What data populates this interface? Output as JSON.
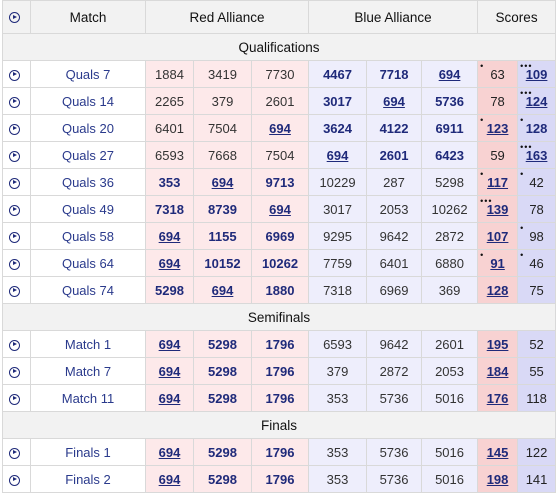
{
  "headers": {
    "match": "Match",
    "red": "Red Alliance",
    "blue": "Blue Alliance",
    "scores": "Scores"
  },
  "sections": [
    {
      "title": "Qualifications",
      "rows": [
        {
          "name": "Quals 7",
          "red": [
            {
              "t": "1884",
              "s": ""
            },
            {
              "t": "3419",
              "s": ""
            },
            {
              "t": "7730",
              "s": ""
            }
          ],
          "blue": [
            {
              "t": "4467",
              "s": "b"
            },
            {
              "t": "7718",
              "s": "b"
            },
            {
              "t": "694",
              "s": "u"
            }
          ],
          "rs": {
            "t": "63",
            "s": "",
            "d": "•"
          },
          "bs": {
            "t": "109",
            "s": "u",
            "d": "•••"
          }
        },
        {
          "name": "Quals 14",
          "red": [
            {
              "t": "2265",
              "s": ""
            },
            {
              "t": "379",
              "s": ""
            },
            {
              "t": "2601",
              "s": ""
            }
          ],
          "blue": [
            {
              "t": "3017",
              "s": "b"
            },
            {
              "t": "694",
              "s": "u"
            },
            {
              "t": "5736",
              "s": "b"
            }
          ],
          "rs": {
            "t": "78",
            "s": "",
            "d": ""
          },
          "bs": {
            "t": "124",
            "s": "u",
            "d": "•••"
          }
        },
        {
          "name": "Quals 20",
          "red": [
            {
              "t": "6401",
              "s": ""
            },
            {
              "t": "7504",
              "s": ""
            },
            {
              "t": "694",
              "s": "u"
            }
          ],
          "blue": [
            {
              "t": "3624",
              "s": "b"
            },
            {
              "t": "4122",
              "s": "b"
            },
            {
              "t": "6911",
              "s": "b"
            }
          ],
          "rs": {
            "t": "123",
            "s": "u",
            "d": "•"
          },
          "bs": {
            "t": "128",
            "s": "b",
            "d": "•"
          }
        },
        {
          "name": "Quals 27",
          "red": [
            {
              "t": "6593",
              "s": ""
            },
            {
              "t": "7668",
              "s": ""
            },
            {
              "t": "7504",
              "s": ""
            }
          ],
          "blue": [
            {
              "t": "694",
              "s": "u"
            },
            {
              "t": "2601",
              "s": "b"
            },
            {
              "t": "6423",
              "s": "b"
            }
          ],
          "rs": {
            "t": "59",
            "s": "",
            "d": ""
          },
          "bs": {
            "t": "163",
            "s": "u",
            "d": "•••"
          }
        },
        {
          "name": "Quals 36",
          "red": [
            {
              "t": "353",
              "s": "b"
            },
            {
              "t": "694",
              "s": "u"
            },
            {
              "t": "9713",
              "s": "b"
            }
          ],
          "blue": [
            {
              "t": "10229",
              "s": ""
            },
            {
              "t": "287",
              "s": ""
            },
            {
              "t": "5298",
              "s": ""
            }
          ],
          "rs": {
            "t": "117",
            "s": "u",
            "d": "•"
          },
          "bs": {
            "t": "42",
            "s": "",
            "d": "•"
          }
        },
        {
          "name": "Quals 49",
          "red": [
            {
              "t": "7318",
              "s": "b"
            },
            {
              "t": "8739",
              "s": "b"
            },
            {
              "t": "694",
              "s": "u"
            }
          ],
          "blue": [
            {
              "t": "3017",
              "s": ""
            },
            {
              "t": "2053",
              "s": ""
            },
            {
              "t": "10262",
              "s": ""
            }
          ],
          "rs": {
            "t": "139",
            "s": "u",
            "d": "•••"
          },
          "bs": {
            "t": "78",
            "s": "",
            "d": ""
          }
        },
        {
          "name": "Quals 58",
          "red": [
            {
              "t": "694",
              "s": "u"
            },
            {
              "t": "1155",
              "s": "b"
            },
            {
              "t": "6969",
              "s": "b"
            }
          ],
          "blue": [
            {
              "t": "9295",
              "s": ""
            },
            {
              "t": "9642",
              "s": ""
            },
            {
              "t": "2872",
              "s": ""
            }
          ],
          "rs": {
            "t": "107",
            "s": "u",
            "d": ""
          },
          "bs": {
            "t": "98",
            "s": "",
            "d": "•"
          }
        },
        {
          "name": "Quals 64",
          "red": [
            {
              "t": "694",
              "s": "u"
            },
            {
              "t": "10152",
              "s": "b"
            },
            {
              "t": "10262",
              "s": "b"
            }
          ],
          "blue": [
            {
              "t": "7759",
              "s": ""
            },
            {
              "t": "6401",
              "s": ""
            },
            {
              "t": "6880",
              "s": ""
            }
          ],
          "rs": {
            "t": "91",
            "s": "u",
            "d": "•"
          },
          "bs": {
            "t": "46",
            "s": "",
            "d": "•"
          }
        },
        {
          "name": "Quals 74",
          "red": [
            {
              "t": "5298",
              "s": "b"
            },
            {
              "t": "694",
              "s": "u"
            },
            {
              "t": "1880",
              "s": "b"
            }
          ],
          "blue": [
            {
              "t": "7318",
              "s": ""
            },
            {
              "t": "6969",
              "s": ""
            },
            {
              "t": "369",
              "s": ""
            }
          ],
          "rs": {
            "t": "128",
            "s": "u",
            "d": ""
          },
          "bs": {
            "t": "75",
            "s": "",
            "d": ""
          }
        }
      ]
    },
    {
      "title": "Semifinals",
      "rows": [
        {
          "name": "Match 1",
          "red": [
            {
              "t": "694",
              "s": "u"
            },
            {
              "t": "5298",
              "s": "b"
            },
            {
              "t": "1796",
              "s": "b"
            }
          ],
          "blue": [
            {
              "t": "6593",
              "s": ""
            },
            {
              "t": "9642",
              "s": ""
            },
            {
              "t": "2601",
              "s": ""
            }
          ],
          "rs": {
            "t": "195",
            "s": "u",
            "d": ""
          },
          "bs": {
            "t": "52",
            "s": "",
            "d": ""
          }
        },
        {
          "name": "Match 7",
          "red": [
            {
              "t": "694",
              "s": "u"
            },
            {
              "t": "5298",
              "s": "b"
            },
            {
              "t": "1796",
              "s": "b"
            }
          ],
          "blue": [
            {
              "t": "379",
              "s": ""
            },
            {
              "t": "2872",
              "s": ""
            },
            {
              "t": "2053",
              "s": ""
            }
          ],
          "rs": {
            "t": "184",
            "s": "u",
            "d": ""
          },
          "bs": {
            "t": "55",
            "s": "",
            "d": ""
          }
        },
        {
          "name": "Match 11",
          "red": [
            {
              "t": "694",
              "s": "u"
            },
            {
              "t": "5298",
              "s": "b"
            },
            {
              "t": "1796",
              "s": "b"
            }
          ],
          "blue": [
            {
              "t": "353",
              "s": ""
            },
            {
              "t": "5736",
              "s": ""
            },
            {
              "t": "5016",
              "s": ""
            }
          ],
          "rs": {
            "t": "176",
            "s": "u",
            "d": ""
          },
          "bs": {
            "t": "118",
            "s": "",
            "d": ""
          }
        }
      ]
    },
    {
      "title": "Finals",
      "rows": [
        {
          "name": "Finals 1",
          "red": [
            {
              "t": "694",
              "s": "u"
            },
            {
              "t": "5298",
              "s": "b"
            },
            {
              "t": "1796",
              "s": "b"
            }
          ],
          "blue": [
            {
              "t": "353",
              "s": ""
            },
            {
              "t": "5736",
              "s": ""
            },
            {
              "t": "5016",
              "s": ""
            }
          ],
          "rs": {
            "t": "145",
            "s": "u",
            "d": ""
          },
          "bs": {
            "t": "122",
            "s": "",
            "d": ""
          }
        },
        {
          "name": "Finals 2",
          "red": [
            {
              "t": "694",
              "s": "u"
            },
            {
              "t": "5298",
              "s": "b"
            },
            {
              "t": "1796",
              "s": "b"
            }
          ],
          "blue": [
            {
              "t": "353",
              "s": ""
            },
            {
              "t": "5736",
              "s": ""
            },
            {
              "t": "5016",
              "s": ""
            }
          ],
          "rs": {
            "t": "198",
            "s": "u",
            "d": ""
          },
          "bs": {
            "t": "141",
            "s": "",
            "d": ""
          }
        }
      ]
    }
  ]
}
